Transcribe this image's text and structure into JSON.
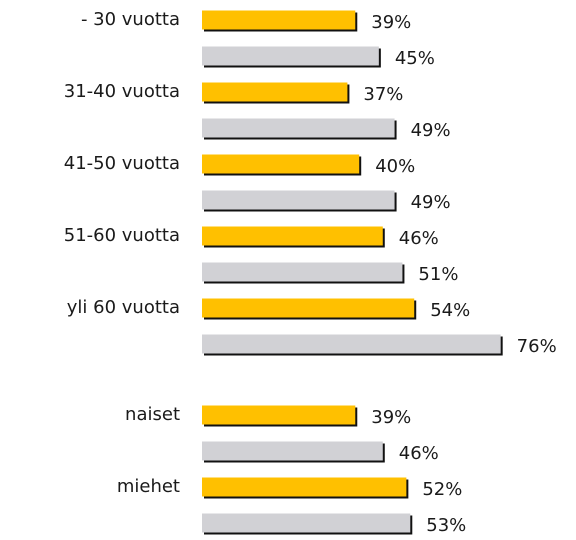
{
  "chart_data": {
    "type": "bar",
    "orientation": "horizontal",
    "categories": [
      "- 30 vuotta",
      "31-40 vuotta",
      "41-50 vuotta",
      "51-60 vuotta",
      "yli 60 vuotta",
      "naiset",
      "miehet"
    ],
    "series": [
      {
        "color": "#ffc000",
        "values": [
          39,
          37,
          40,
          46,
          54,
          39,
          52
        ],
        "value_labels": [
          "39%",
          "37%",
          "40%",
          "46%",
          "54%",
          "39%",
          "52%"
        ]
      },
      {
        "color": "#d1d1d5",
        "values": [
          45,
          49,
          49,
          51,
          76,
          46,
          53
        ],
        "value_labels": [
          "45%",
          "49%",
          "49%",
          "51%",
          "76%",
          "46%",
          "53%"
        ]
      }
    ]
  }
}
